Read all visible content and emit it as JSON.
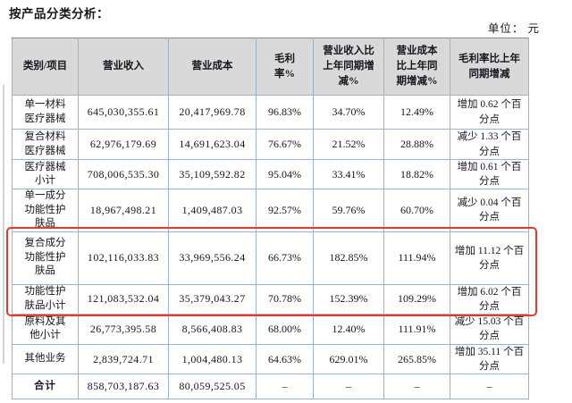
{
  "page": {
    "title": "按产品分类分析：",
    "unit_label": "单位： 元"
  },
  "table": {
    "headers": [
      "类别/项目",
      "营业收入",
      "营业成本",
      "毛利率%",
      "营业收入比上年同期增减%",
      "营业成本比上年同期增减%",
      "毛利率比上年同期增减"
    ],
    "rows": [
      {
        "category": "单一材料医疗器械",
        "revenue": "645,030,355.61",
        "cost": "20,417,969.78",
        "margin": "96.83%",
        "revenue_yoy": "34.70%",
        "cost_yoy": "12.49%",
        "margin_yoy": "增加 0.62 个百分点"
      },
      {
        "category": "复合材料医疗器械",
        "revenue": "62,976,179.69",
        "cost": "14,691,623.04",
        "margin": "76.67%",
        "revenue_yoy": "21.52%",
        "cost_yoy": "28.88%",
        "margin_yoy": "减少 1.33 个百分点"
      },
      {
        "category": "医疗器械小计",
        "revenue": "708,006,535.30",
        "cost": "35,109,592.82",
        "margin": "95.04%",
        "revenue_yoy": "33.41%",
        "cost_yoy": "18.82%",
        "margin_yoy": "增加 0.61 个百分点"
      },
      {
        "category": "单一成分功能性护肤品",
        "revenue": "18,967,498.21",
        "cost": "1,409,487.03",
        "margin": "92.57%",
        "revenue_yoy": "59.76%",
        "cost_yoy": "60.70%",
        "margin_yoy": "减少 0.04 个百分点"
      },
      {
        "category": "复合成分功能性护肤品",
        "revenue": "102,116,033.83",
        "cost": "33,969,556.24",
        "margin": "66.73%",
        "revenue_yoy": "182.85%",
        "cost_yoy": "111.94%",
        "margin_yoy": "增加 11.12 个百分点"
      },
      {
        "category": "功能性护肤品小计",
        "revenue": "121,083,532.04",
        "cost": "35,379,043.27",
        "margin": "70.78%",
        "revenue_yoy": "152.39%",
        "cost_yoy": "109.29%",
        "margin_yoy": "增加 6.02 个百分点"
      },
      {
        "category": "原料及其他小计",
        "revenue": "26,773,395.58",
        "cost": "8,566,408.83",
        "margin": "68.00%",
        "revenue_yoy": "12.40%",
        "cost_yoy": "111.91%",
        "margin_yoy": "减少 15.03 个百分点"
      },
      {
        "category": "其他业务",
        "revenue": "2,839,724.71",
        "cost": "1,004,480.13",
        "margin": "64.63%",
        "revenue_yoy": "629.01%",
        "cost_yoy": "265.85%",
        "margin_yoy": "增加 35.11 个百分点"
      },
      {
        "category": "合计",
        "revenue": "858,703,187.63",
        "cost": "80,059,525.05",
        "margin": "–",
        "revenue_yoy": "–",
        "cost_yoy": "–",
        "margin_yoy": "–"
      }
    ]
  },
  "highlight": {
    "color": "#e13a2c",
    "highlighted_categories": [
      "复合成分功能性护肤品",
      "功能性护肤品小计"
    ]
  }
}
